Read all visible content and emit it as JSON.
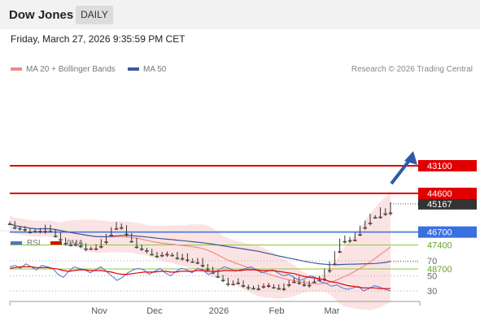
{
  "header": {
    "title": "Dow Jones",
    "period": "DAILY"
  },
  "datetime": "Friday, March 27, 2026 9:35:59 PM CET",
  "legend": {
    "ma20": {
      "label": "MA 20 + Bollinger Bands",
      "color": "#f08a8a"
    },
    "ma50": {
      "label": "MA 50",
      "color": "#3b5a9a"
    }
  },
  "copyright": "Research © 2026 Trading Central",
  "rsi_legend": {
    "rsi": {
      "label": "RSI",
      "color": "#4a74d4"
    },
    "ma9": {
      "label": "9MA",
      "color": "#e00000"
    }
  },
  "chart_data": [
    {
      "type": "candlestick",
      "title": "Dow Jones",
      "x_tick_labels": [
        "Nov",
        "Dec",
        "2026",
        "Feb",
        "Mar"
      ],
      "levels": [
        {
          "value": 48700,
          "label": "48700",
          "kind": "resistance",
          "color": "#8cc63f"
        },
        {
          "value": 47400,
          "label": "47400",
          "kind": "resistance",
          "color": "#8cc63f"
        },
        {
          "value": 46700,
          "label": "46700",
          "kind": "pivot",
          "color": "#3a6fe0"
        },
        {
          "value": 45167,
          "label": "45167",
          "kind": "last-price",
          "color": "#333333"
        },
        {
          "value": 44600,
          "label": "44600",
          "kind": "support",
          "color": "#e00000"
        },
        {
          "value": 43100,
          "label": "43100",
          "kind": "support",
          "color": "#e00000"
        }
      ],
      "series": [
        {
          "name": "MA 20",
          "color": "#f08a8a"
        },
        {
          "name": "MA 50",
          "color": "#3b5a9a"
        }
      ],
      "forecast_arrow": {
        "from_value": 45167,
        "to_value": 43100,
        "color": "#2f5aa8"
      },
      "approx_close_path": [
        46250,
        46450,
        46500,
        46550,
        46700,
        46650,
        46600,
        46400,
        46650,
        46900,
        47100,
        47300,
        47400,
        47350,
        47450,
        47600,
        47550,
        47500,
        47200,
        46900,
        46500,
        46300,
        46450,
        46800,
        47200,
        47500,
        47600,
        47700,
        47900,
        48000,
        47900,
        47850,
        47950,
        48100,
        48000,
        48200,
        48300,
        48250,
        48500,
        48700,
        48900,
        49100,
        49300,
        49500,
        49400,
        49450,
        49600,
        49700,
        49750,
        49700,
        49600,
        49550,
        49700,
        49750,
        49600,
        49400,
        49200,
        49450,
        49550,
        49450,
        49300,
        49200,
        48800,
        48400,
        47800,
        47200,
        47000,
        47150,
        46800,
        46500,
        46200,
        45800,
        45900,
        45500,
        45700,
        45167
      ]
    },
    {
      "type": "line",
      "title": "RSI",
      "y_ticks": [
        70,
        50,
        30
      ],
      "series": [
        {
          "name": "RSI",
          "color": "#4a74d4"
        },
        {
          "name": "9MA",
          "color": "#e00000"
        }
      ],
      "approx_values": {
        "RSI": [
          62,
          64,
          60,
          66,
          62,
          58,
          64,
          62,
          60,
          52,
          48,
          56,
          62,
          60,
          58,
          54,
          58,
          62,
          56,
          50,
          44,
          48,
          54,
          58,
          60,
          58,
          52,
          56,
          60,
          54,
          50,
          56,
          60,
          58,
          54,
          60,
          58,
          52,
          54,
          58,
          62,
          60,
          56,
          58,
          60,
          62,
          58,
          54,
          56,
          58,
          54,
          50,
          52,
          48,
          44,
          46,
          50,
          48,
          42,
          40,
          36,
          38,
          34,
          32,
          34,
          36,
          30,
          33,
          37,
          35,
          32,
          30
        ],
        "9MA": [
          60,
          61,
          62,
          62,
          62,
          61,
          61,
          61,
          60,
          59,
          57,
          56,
          57,
          58,
          58,
          57,
          57,
          57,
          56,
          55,
          53,
          52,
          52,
          53,
          54,
          55,
          55,
          55,
          56,
          56,
          55,
          55,
          56,
          56,
          56,
          57,
          57,
          56,
          56,
          56,
          57,
          57,
          57,
          57,
          58,
          58,
          58,
          57,
          57,
          57,
          56,
          55,
          54,
          53,
          51,
          49,
          48,
          47,
          46,
          44,
          42,
          41,
          39,
          37,
          36,
          35,
          34,
          34,
          34,
          33,
          33,
          33
        ]
      }
    }
  ]
}
